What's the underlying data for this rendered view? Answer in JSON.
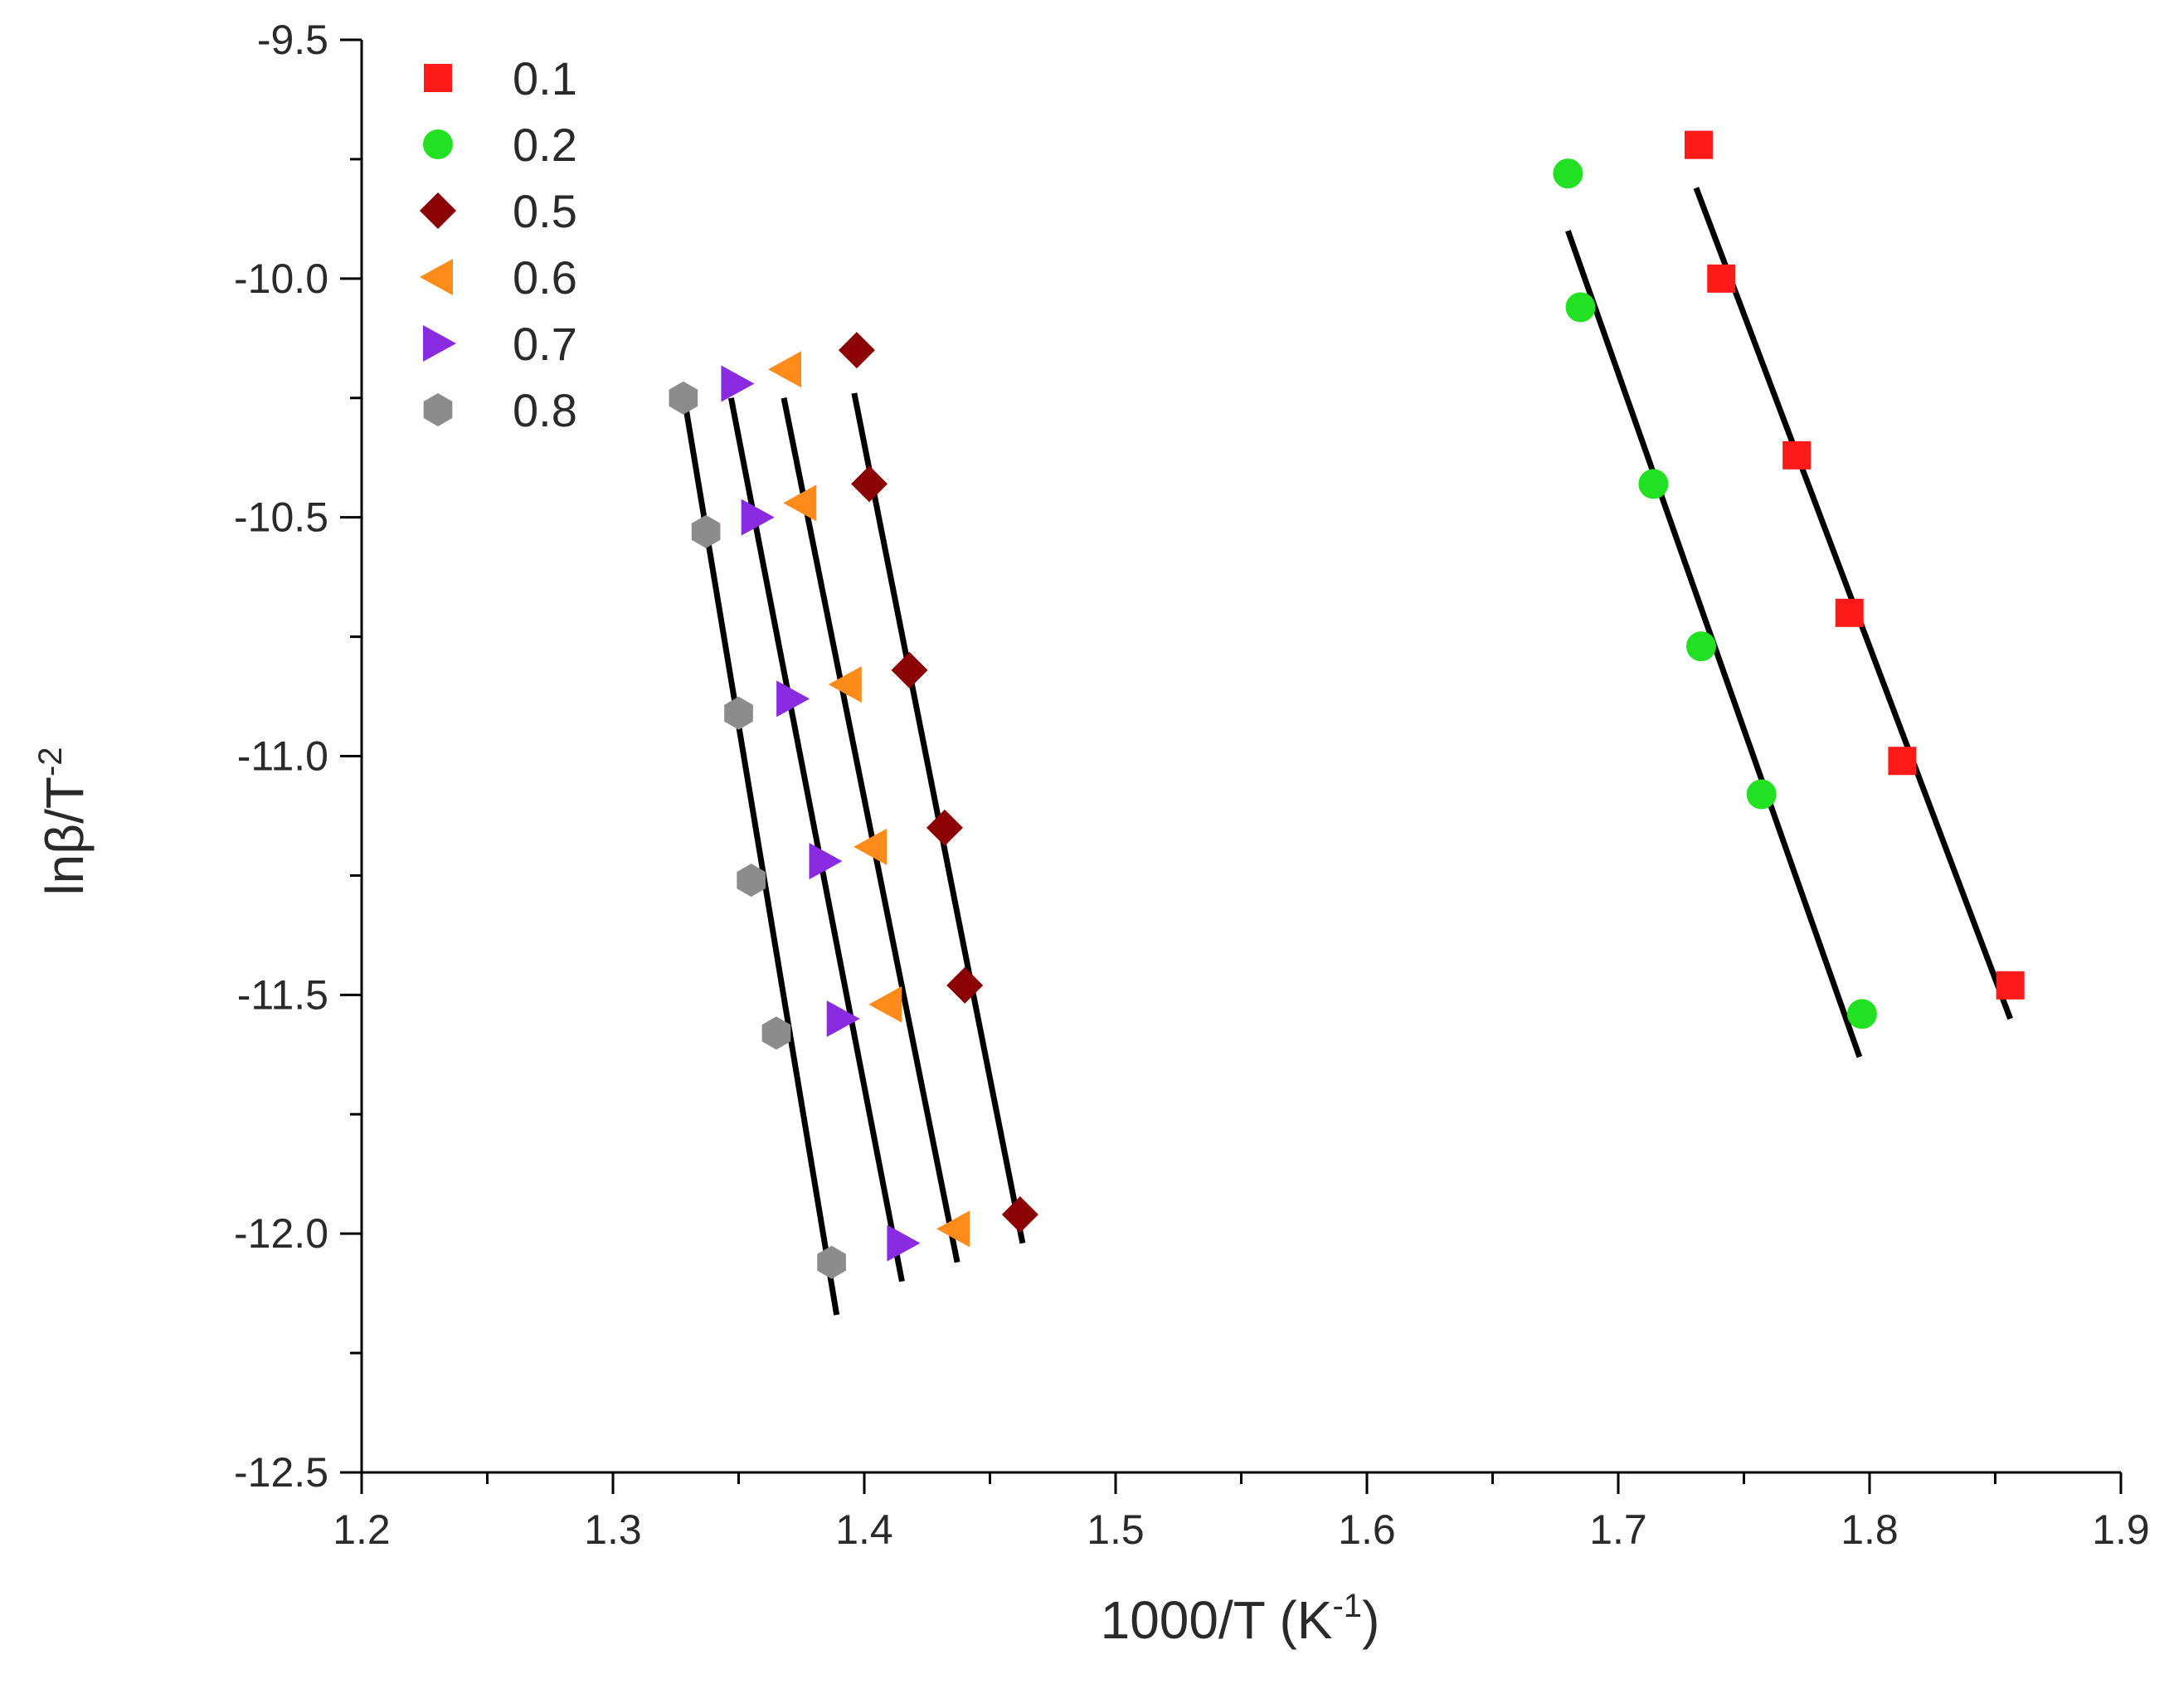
{
  "chart_data": {
    "type": "scatter",
    "title": "",
    "xlabel": "1000/T (K",
    "xlabel_sup": "-1",
    "xlabel_close": ")",
    "ylabel": "lnβ/T",
    "ylabel_sup": "-2",
    "xlim": [
      1.2,
      1.9
    ],
    "ylim": [
      -12.5,
      -9.5
    ],
    "xticks": [
      1.2,
      1.3,
      1.4,
      1.5,
      1.6,
      1.7,
      1.8,
      1.9
    ],
    "xtick_labels": [
      "1.2",
      "1.3",
      "1.4",
      "1.5",
      "1.6",
      "1.7",
      "1.8",
      "1.9"
    ],
    "yticks": [
      -12.5,
      -12.0,
      -11.5,
      -11.0,
      -10.5,
      -10.0,
      -9.5
    ],
    "ytick_labels": [
      "-12.5",
      "-12.0",
      "-11.5",
      "-11.0",
      "-10.5",
      "-10.0",
      "-9.5"
    ],
    "grid": false,
    "legend_position": "top-left",
    "series": [
      {
        "name": "0.1",
        "marker": "square",
        "color": "#ff1a1a",
        "x": [
          1.732,
          1.741,
          1.771,
          1.792,
          1.813,
          1.856
        ],
        "y": [
          -9.72,
          -10.0,
          -10.37,
          -10.7,
          -11.01,
          -11.48
        ],
        "fit": {
          "x": [
            1.731,
            1.856
          ],
          "y": [
            -9.81,
            -11.55
          ]
        }
      },
      {
        "name": "0.2",
        "marker": "circle",
        "color": "#22e022",
        "x": [
          1.68,
          1.685,
          1.714,
          1.733,
          1.757,
          1.797
        ],
        "y": [
          -9.78,
          -10.06,
          -10.43,
          -10.77,
          -11.08,
          -11.54
        ],
        "fit": {
          "x": [
            1.68,
            1.796
          ],
          "y": [
            -9.9,
            -11.63
          ]
        }
      },
      {
        "name": "0.5",
        "marker": "diamond",
        "color": "#8b0000",
        "x": [
          1.397,
          1.402,
          1.418,
          1.432,
          1.44,
          1.462
        ],
        "y": [
          -10.15,
          -10.43,
          -10.82,
          -11.15,
          -11.48,
          -11.96
        ],
        "fit": {
          "x": [
            1.396,
            1.463
          ],
          "y": [
            -10.24,
            -12.02
          ]
        }
      },
      {
        "name": "0.6",
        "marker": "triangle-left",
        "color": "#ff8c1a",
        "x": [
          1.369,
          1.375,
          1.393,
          1.403,
          1.409,
          1.436
        ],
        "y": [
          -10.19,
          -10.47,
          -10.85,
          -11.19,
          -11.52,
          -11.99
        ],
        "fit": {
          "x": [
            1.368,
            1.437
          ],
          "y": [
            -10.25,
            -12.06
          ]
        }
      },
      {
        "name": "0.7",
        "marker": "triangle-right",
        "color": "#8a2be2",
        "x": [
          1.349,
          1.357,
          1.371,
          1.384,
          1.391,
          1.415
        ],
        "y": [
          -10.22,
          -10.5,
          -10.88,
          -11.22,
          -11.55,
          -12.02
        ],
        "fit": {
          "x": [
            1.347,
            1.415
          ],
          "y": [
            -10.25,
            -12.1
          ]
        }
      },
      {
        "name": "0.8",
        "marker": "hexagon",
        "color": "#8c8c8c",
        "x": [
          1.328,
          1.337,
          1.35,
          1.355,
          1.365,
          1.387
        ],
        "y": [
          -10.25,
          -10.53,
          -10.91,
          -11.26,
          -11.58,
          -12.06
        ],
        "fit": {
          "x": [
            1.329,
            1.389
          ],
          "y": [
            -10.27,
            -12.17
          ]
        }
      }
    ]
  }
}
